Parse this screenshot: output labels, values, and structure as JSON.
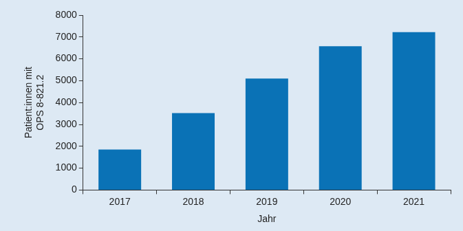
{
  "chart_data": {
    "type": "bar",
    "x_label": "Jahr",
    "y_label": [
      "Patient:innen mit",
      "OPS 8-821.2"
    ],
    "categories": [
      "2017",
      "2018",
      "2019",
      "2020",
      "2021"
    ],
    "values": [
      1850,
      3520,
      5100,
      6580,
      7220
    ],
    "color": "#0a72b6",
    "ylim": [
      0,
      8000
    ],
    "yticks": [
      0,
      1000,
      2000,
      3000,
      4000,
      5000,
      6000,
      7000,
      8000
    ],
    "grid": false
  }
}
